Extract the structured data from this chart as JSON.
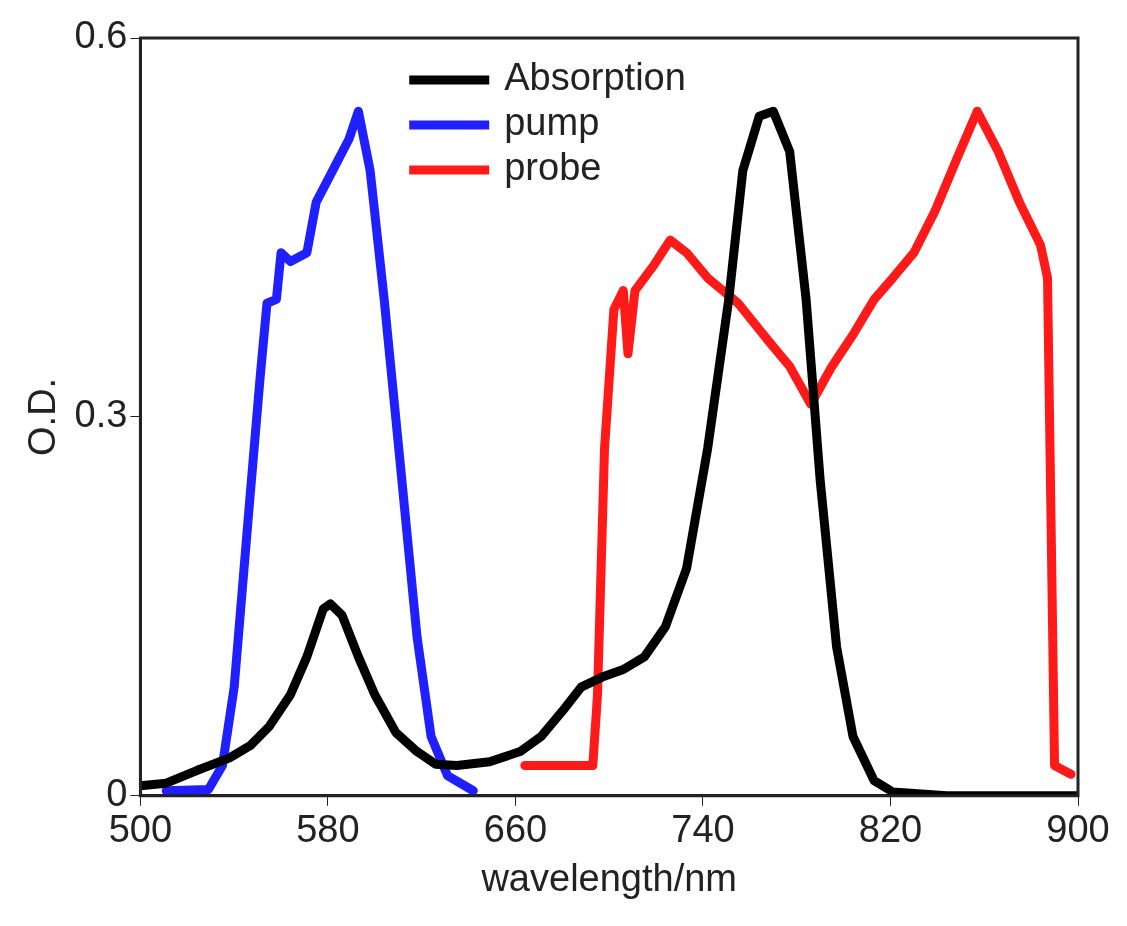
{
  "chart_data": {
    "type": "line",
    "xlabel": "wavelength/nm",
    "ylabel": "O.D.",
    "xlim": [
      500,
      900
    ],
    "xticks": [
      500,
      580,
      660,
      740,
      820,
      900
    ],
    "ylim": [
      0,
      0.6
    ],
    "yticks": [
      0,
      0.3,
      0.6
    ],
    "grid": false,
    "legend": "top",
    "marker": "none",
    "line_style": "solid",
    "series": [
      {
        "name": "Absorption",
        "color": "#000000",
        "x": [
          500,
          511,
          524,
          538,
          547,
          555,
          564,
          571,
          578,
          581,
          586,
          593,
          600,
          609,
          618,
          626,
          635,
          649,
          662,
          671,
          680,
          688,
          697,
          706,
          715,
          724,
          733,
          742,
          751,
          757,
          764,
          770,
          777,
          784,
          790,
          797,
          804,
          813,
          821,
          844,
          900
        ],
        "values": [
          0.008,
          0.01,
          0.02,
          0.03,
          0.04,
          0.055,
          0.08,
          0.11,
          0.148,
          0.152,
          0.143,
          0.11,
          0.08,
          0.05,
          0.035,
          0.025,
          0.024,
          0.027,
          0.035,
          0.047,
          0.067,
          0.086,
          0.094,
          0.1,
          0.11,
          0.134,
          0.18,
          0.275,
          0.393,
          0.495,
          0.538,
          0.542,
          0.51,
          0.393,
          0.25,
          0.118,
          0.047,
          0.012,
          0.003,
          0,
          0
        ]
      },
      {
        "name": "pump",
        "color": "#1f1fff",
        "x": [
          511,
          529,
          535,
          540,
          546,
          551,
          554,
          558,
          560,
          564,
          571,
          575,
          582,
          589,
          593,
          598,
          604,
          611,
          618,
          624,
          631,
          642
        ],
        "values": [
          0.004,
          0.005,
          0.024,
          0.086,
          0.22,
          0.33,
          0.39,
          0.393,
          0.43,
          0.423,
          0.43,
          0.47,
          0.495,
          0.52,
          0.542,
          0.495,
          0.393,
          0.26,
          0.126,
          0.047,
          0.016,
          0.004
        ]
      },
      {
        "name": "probe",
        "color": "#ff1a1a",
        "x": [
          664,
          693,
          695,
          698,
          702,
          706,
          708,
          711,
          719,
          726,
          733,
          742,
          755,
          768,
          777,
          786,
          795,
          804,
          813,
          821,
          830,
          839,
          848,
          857,
          866,
          875,
          884,
          887,
          890,
          897
        ],
        "values": [
          0.024,
          0.024,
          0.08,
          0.275,
          0.385,
          0.4,
          0.35,
          0.4,
          0.42,
          0.44,
          0.43,
          0.41,
          0.39,
          0.36,
          0.34,
          0.31,
          0.34,
          0.365,
          0.393,
          0.41,
          0.43,
          0.463,
          0.503,
          0.542,
          0.51,
          0.47,
          0.436,
          0.41,
          0.024,
          0.017
        ]
      }
    ]
  }
}
